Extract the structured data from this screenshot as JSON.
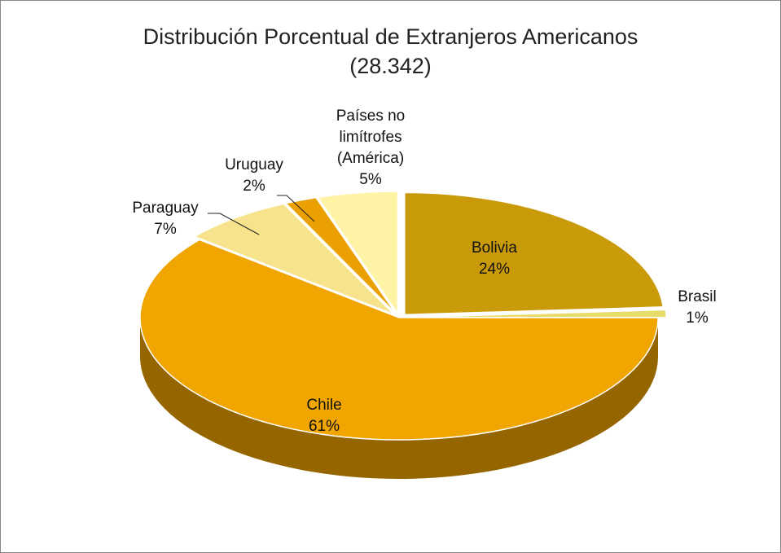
{
  "chart_data": {
    "type": "pie",
    "title": "Distribución Porcentual de Extranjeros  Americanos",
    "subtitle": "(28.342)",
    "categories": [
      "Bolivia",
      "Brasil",
      "Chile",
      "Paraguay",
      "Uruguay",
      "Países no limítrofes (América)"
    ],
    "values": [
      24,
      1,
      61,
      7,
      2,
      5
    ],
    "value_labels": [
      "24%",
      "1%",
      "61%",
      "7%",
      "2%",
      "5%"
    ],
    "colors": [
      "#c99a0a",
      "#e6dc6a",
      "#f0a500",
      "#f6e38c",
      "#e9a000",
      "#fff3a6"
    ]
  }
}
